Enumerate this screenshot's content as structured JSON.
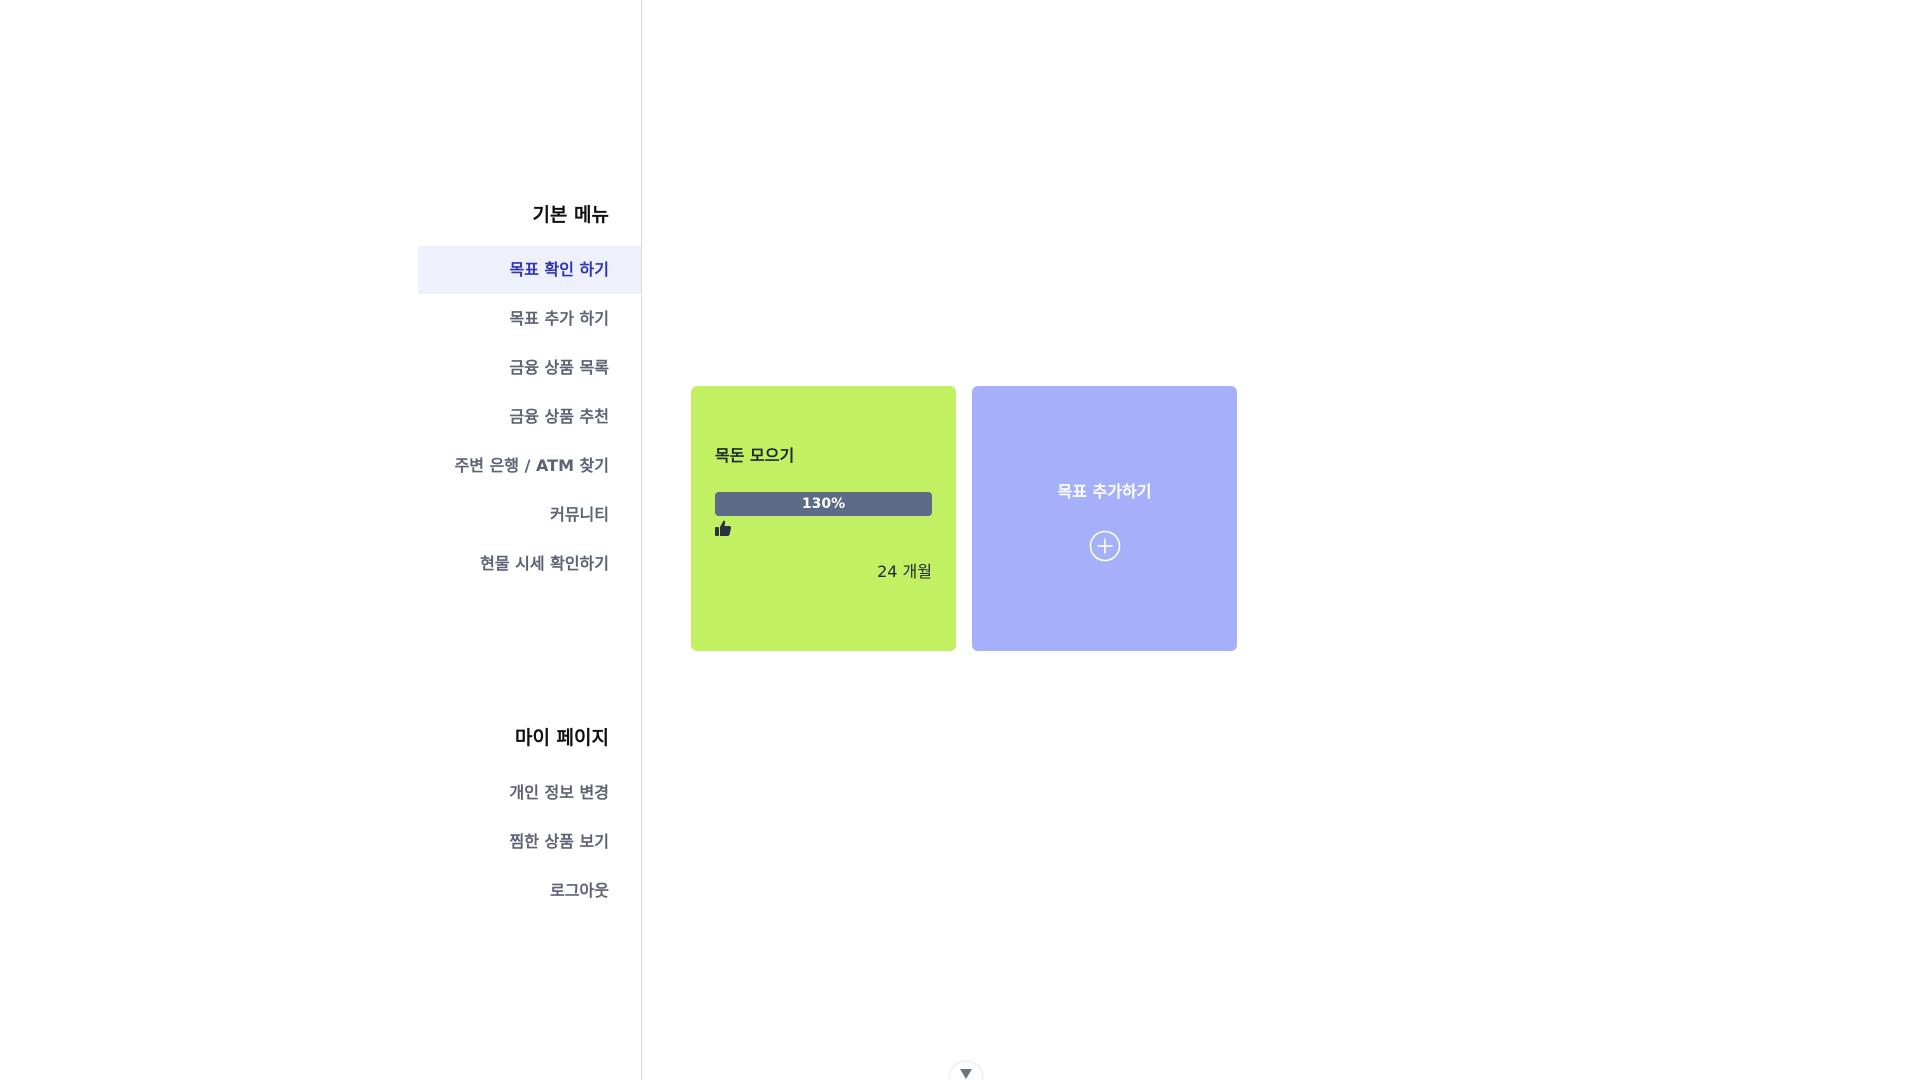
{
  "sidebar": {
    "basic_menu": {
      "heading": "기본 메뉴",
      "items": [
        {
          "label": "목표 확인 하기",
          "active": true
        },
        {
          "label": "목표 추가 하기"
        },
        {
          "label": "금융 상품 목록"
        },
        {
          "label": "금융 상품 추천"
        },
        {
          "label": "주변 은행 / ATM 찾기"
        },
        {
          "label": "커뮤니티"
        },
        {
          "label": "현물 시세 확인하기"
        }
      ]
    },
    "my_page": {
      "heading": "마이 페이지",
      "items": [
        {
          "label": "개인 정보 변경"
        },
        {
          "label": "찜한 상품 보기"
        },
        {
          "label": "로그아웃"
        }
      ]
    }
  },
  "goal_card": {
    "title": "목돈 모으기",
    "progress_label": "130%",
    "progress_percent": 130,
    "duration": "24 개월",
    "icon": "thumbs-up-icon",
    "color": "#c1f062"
  },
  "add_card": {
    "title": "목표 추가하기",
    "icon": "plus-circle-icon",
    "color": "#a4b1fa"
  },
  "colors": {
    "active_menu_bg": "#eef1fc",
    "active_menu_text": "#2f34b5",
    "progress_bar": "#5c6b88"
  },
  "scroll": {
    "icon": "chevron-down-icon"
  }
}
